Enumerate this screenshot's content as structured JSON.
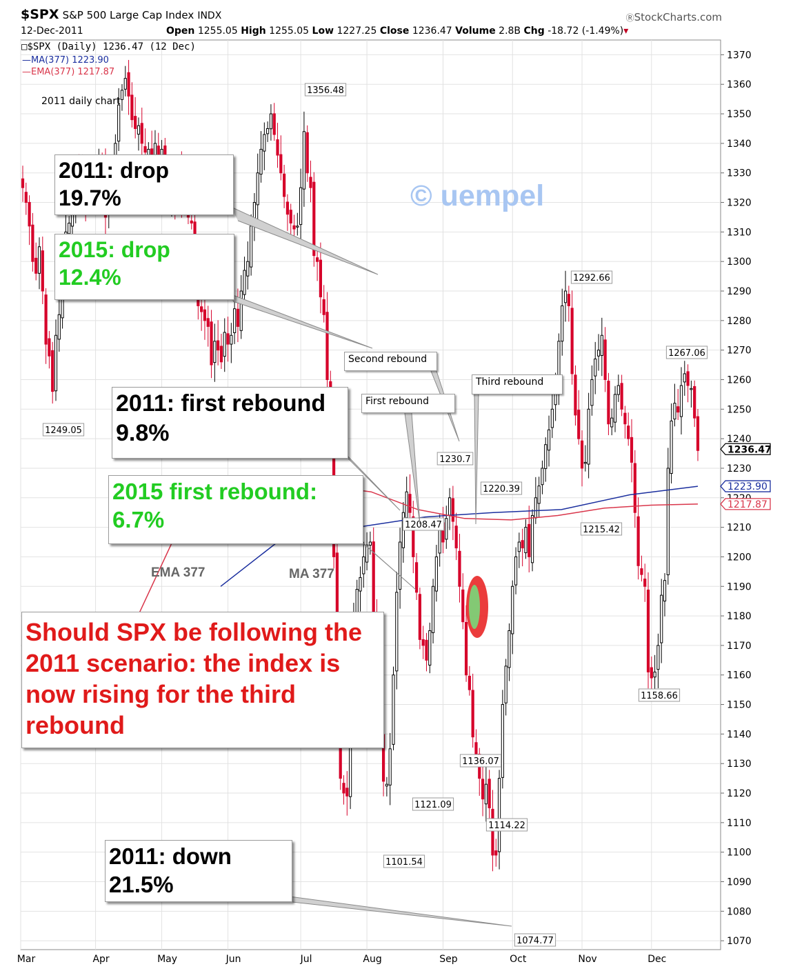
{
  "header": {
    "symbol": "$SPX",
    "name": "S&P 500 Large Cap Index",
    "exchange": "INDX",
    "brand": "StockCharts.com",
    "brand_icon": "copyright-icon",
    "date": "12-Dec-2011",
    "open_label": "Open",
    "open": "1255.05",
    "high_label": "High",
    "high": "1255.05",
    "low_label": "Low",
    "low": "1227.25",
    "close_label": "Close",
    "close": "1236.47",
    "volume_label": "Volume",
    "volume": "2.8B",
    "chg_label": "Chg",
    "chg": "-18.72 (-1.49%)",
    "chg_arrow": "▾"
  },
  "legend": {
    "price": "$SPX (Daily) 1236.47 (12 Dec)",
    "ma": "MA(377) 1223.90",
    "ema": "EMA(377) 1217.87"
  },
  "colors": {
    "up": "#000000",
    "down": "#d6002a",
    "ma": "#1a2e9e",
    "ema": "#d9354a",
    "grid": "#e2e2e2",
    "green_text": "#22cc22",
    "red_text": "#e01a1a",
    "watermark": "#a8c6f2"
  },
  "annotations": {
    "subtitle": "2011 daily chart",
    "watermark": "© uempel",
    "ema_label": "EMA 377",
    "ma_label": "MA 377",
    "box_drop_2011": "2011: drop 19.7%",
    "box_drop_2015": "2015: drop 12.4%",
    "box_first_2011": "2011: first rebound 9.8%",
    "box_first_2015": "2015 first rebound: 6.7%",
    "box_scenario": "Should SPX be following the 2011 scenario: the index is now rising for the third rebound",
    "box_down_2011": "2011: down 21.5%",
    "second_rebound": "Second rebound",
    "first_rebound": "First rebound",
    "third_rebound": "Third rebound"
  },
  "chart_data": {
    "type": "candlestick",
    "title": "$SPX S&P 500 Large Cap Index",
    "x_ticks": [
      "Mar",
      "Apr",
      "May",
      "Jun",
      "Jul",
      "Aug",
      "Sep",
      "Oct",
      "Nov",
      "Dec"
    ],
    "y_ticks": [
      1070,
      1080,
      1090,
      1100,
      1110,
      1120,
      1130,
      1140,
      1150,
      1160,
      1170,
      1180,
      1190,
      1200,
      1210,
      1220,
      1230,
      1240,
      1250,
      1260,
      1270,
      1280,
      1290,
      1300,
      1310,
      1320,
      1330,
      1340,
      1350,
      1360,
      1370
    ],
    "ylim": [
      1067,
      1375
    ],
    "price_tags": [
      "1236.47",
      "1223.90",
      "1217.87"
    ],
    "series": [
      {
        "name": "$SPX (Daily)",
        "close_path": [
          1325,
          1320,
          1312,
          1300,
          1296,
          1305,
          1290,
          1272,
          1268,
          1256,
          1275,
          1282,
          1296,
          1310,
          1313,
          1318,
          1330,
          1325,
          1332,
          1319,
          1326,
          1320,
          1330,
          1335,
          1330,
          1315,
          1322,
          1325,
          1340,
          1353,
          1358,
          1362,
          1356,
          1348,
          1345,
          1346,
          1340,
          1337,
          1338,
          1333,
          1340,
          1335,
          1338,
          1330,
          1320,
          1325,
          1320,
          1330,
          1320,
          1318,
          1315,
          1313,
          1300,
          1285,
          1283,
          1280,
          1278,
          1265,
          1273,
          1270,
          1266,
          1276,
          1272,
          1275,
          1284,
          1278,
          1290,
          1297,
          1300,
          1312,
          1320,
          1330,
          1338,
          1343,
          1345,
          1350,
          1343,
          1336,
          1330,
          1322,
          1316,
          1313,
          1311,
          1312,
          1325,
          1344,
          1330,
          1325,
          1302,
          1300,
          1288,
          1282,
          1260,
          1240,
          1200,
          1172,
          1125,
          1120,
          1119,
          1161,
          1178,
          1189,
          1193,
          1200,
          1204,
          1205,
          1180,
          1159,
          1140,
          1124,
          1123,
          1135,
          1160,
          1188,
          1205,
          1215,
          1222,
          1215,
          1200,
          1188,
          1172,
          1170,
          1165,
          1175,
          1190,
          1200,
          1210,
          1205,
          1213,
          1220,
          1212,
          1203,
          1190,
          1178,
          1160,
          1155,
          1139,
          1133,
          1125,
          1118,
          1123,
          1115,
          1099,
          1099,
          1125,
          1150,
          1163,
          1175,
          1190,
          1200,
          1205,
          1203,
          1210,
          1200,
          1214,
          1220,
          1224,
          1230,
          1238,
          1243,
          1250,
          1257,
          1273,
          1285,
          1290,
          1285,
          1262,
          1248,
          1240,
          1230,
          1232,
          1250,
          1260,
          1267,
          1270,
          1275,
          1260,
          1245,
          1247,
          1255,
          1258,
          1250,
          1245,
          1240,
          1232,
          1215,
          1197,
          1194,
          1190,
          1161,
          1159,
          1161,
          1170,
          1187,
          1192,
          1230,
          1246,
          1252,
          1249,
          1258,
          1262,
          1258,
          1257,
          1247,
          1236
        ]
      },
      {
        "name": "MA(377)",
        "points": [
          [
            1208,
            1190
          ],
          [
            1210,
            1208
          ],
          [
            1213,
            1210
          ],
          [
            1215,
            1213.5
          ],
          [
            1216,
            1215
          ],
          [
            1217,
            1216
          ],
          [
            1218,
            1221
          ],
          [
            1219,
            1223.9
          ]
        ]
      },
      {
        "name": "EMA(377)",
        "points": [
          [
            1206,
            1180
          ],
          [
            1208,
            1214
          ],
          [
            1209,
            1224
          ],
          [
            1210,
            1226.5
          ],
          [
            1211,
            1224
          ],
          [
            1212,
            1222
          ],
          [
            1213,
            1216
          ],
          [
            1214,
            1213
          ],
          [
            1215,
            1212.5
          ],
          [
            1216,
            1214
          ],
          [
            1217,
            1216.5
          ],
          [
            1218,
            1217.5
          ],
          [
            1219,
            1217.87
          ]
        ]
      }
    ],
    "point_labels": [
      "1356.48",
      "1292.66",
      "1267.06",
      "1249.05",
      "1230.7",
      "1220.39",
      "1208.47",
      "1215.42",
      "1158.66",
      "1136.07",
      "1121.09",
      "1114.22",
      "1101.54",
      "1074.77"
    ]
  }
}
